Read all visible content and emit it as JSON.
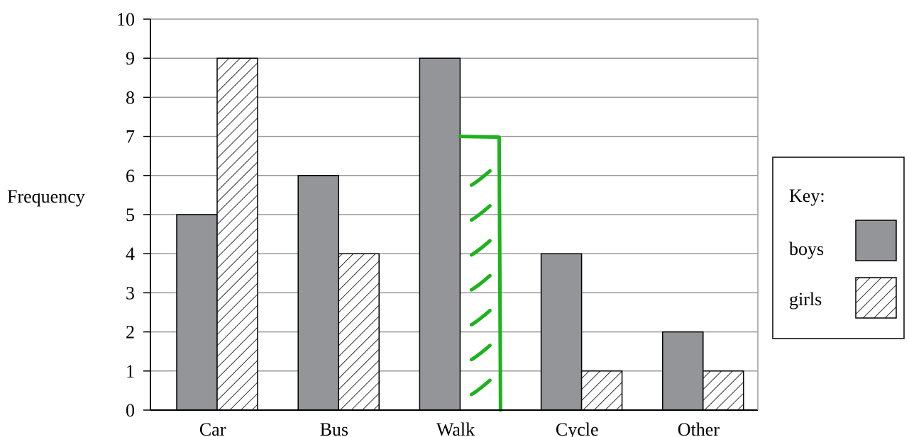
{
  "chart_data": {
    "type": "bar",
    "ylabel": "Frequency",
    "xlabel": "",
    "ylim": [
      0,
      10
    ],
    "yticks": [
      0,
      1,
      2,
      3,
      4,
      5,
      6,
      7,
      8,
      9,
      10
    ],
    "grid": true,
    "categories": [
      "Car",
      "Bus",
      "Walk",
      "Cycle",
      "Other"
    ],
    "series": [
      {
        "name": "boys",
        "values": [
          5,
          6,
          9,
          4,
          2
        ],
        "color": "#939598",
        "pattern": "solid"
      },
      {
        "name": "girls",
        "values": [
          9,
          4,
          7,
          1,
          1
        ],
        "color": "#ffffff",
        "pattern": "diagonal-hatch"
      }
    ],
    "annotation": {
      "category": "Walk",
      "series": "girls",
      "value": 7,
      "color": "#1db31d",
      "style": "hand-drawn bar"
    },
    "legend": {
      "title": "Key:",
      "placement": "right"
    }
  }
}
